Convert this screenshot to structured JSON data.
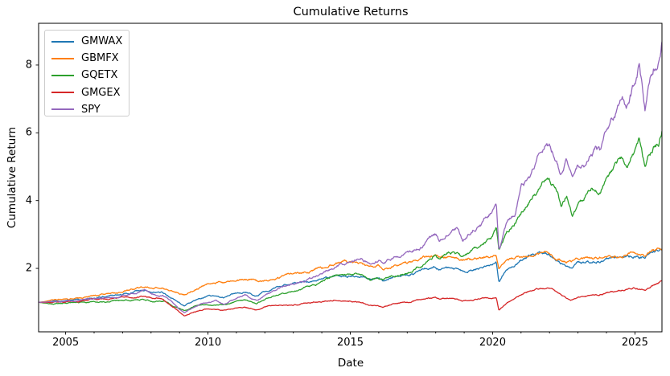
{
  "chart_data": {
    "type": "line",
    "title": "Cumulative Returns",
    "xlabel": "Date",
    "ylabel": "Cumulative Return",
    "grid": false,
    "legend_position": "upper left",
    "x_range": [
      2004.05,
      2025.95
    ],
    "y_range": [
      0.13,
      9.23
    ],
    "x_ticks": [
      2005,
      2010,
      2015,
      2020,
      2025
    ],
    "x_tick_labels": [
      "2005",
      "2010",
      "2015",
      "2020",
      "2025"
    ],
    "y_ticks": [
      2,
      4,
      6,
      8
    ],
    "y_tick_labels": [
      "2",
      "4",
      "6",
      "8"
    ],
    "series": [
      {
        "name": "GMWAX",
        "color": "#1f77b4",
        "points": [
          [
            2004.05,
            1.0
          ],
          [
            2004.5,
            1.02
          ],
          [
            2005,
            1.06
          ],
          [
            2005.5,
            1.09
          ],
          [
            2006,
            1.14
          ],
          [
            2006.5,
            1.18
          ],
          [
            2007,
            1.26
          ],
          [
            2007.5,
            1.34
          ],
          [
            2008,
            1.3
          ],
          [
            2008.4,
            1.28
          ],
          [
            2008.75,
            1.12
          ],
          [
            2009,
            1.0
          ],
          [
            2009.17,
            0.9
          ],
          [
            2009.5,
            1.05
          ],
          [
            2010,
            1.18
          ],
          [
            2010.55,
            1.12
          ],
          [
            2011,
            1.28
          ],
          [
            2011.3,
            1.33
          ],
          [
            2011.7,
            1.22
          ],
          [
            2012,
            1.35
          ],
          [
            2012.5,
            1.48
          ],
          [
            2013,
            1.55
          ],
          [
            2013.5,
            1.62
          ],
          [
            2014,
            1.7
          ],
          [
            2014.5,
            1.8
          ],
          [
            2015,
            1.8
          ],
          [
            2015.4,
            1.79
          ],
          [
            2015.7,
            1.68
          ],
          [
            2016,
            1.72
          ],
          [
            2016.15,
            1.64
          ],
          [
            2016.5,
            1.76
          ],
          [
            2017,
            1.84
          ],
          [
            2017.5,
            1.94
          ],
          [
            2018,
            2.08
          ],
          [
            2018.12,
            1.98
          ],
          [
            2018.5,
            2.02
          ],
          [
            2018.95,
            1.9
          ],
          [
            2019.6,
            2.04
          ],
          [
            2020,
            2.1
          ],
          [
            2020.13,
            2.15
          ],
          [
            2020.22,
            1.62
          ],
          [
            2020.5,
            2.0
          ],
          [
            2021,
            2.25
          ],
          [
            2021.5,
            2.47
          ],
          [
            2021.9,
            2.44
          ],
          [
            2022,
            2.4
          ],
          [
            2022.4,
            2.18
          ],
          [
            2022.75,
            2.0
          ],
          [
            2023,
            2.15
          ],
          [
            2023.5,
            2.2
          ],
          [
            2024,
            2.28
          ],
          [
            2024.5,
            2.33
          ],
          [
            2025,
            2.38
          ],
          [
            2025.35,
            2.3
          ],
          [
            2025.6,
            2.42
          ],
          [
            2025.95,
            2.55
          ]
        ]
      },
      {
        "name": "GBMFX",
        "color": "#ff7f0e",
        "points": [
          [
            2004.05,
            1.0
          ],
          [
            2004.5,
            1.04
          ],
          [
            2005,
            1.08
          ],
          [
            2005.5,
            1.12
          ],
          [
            2006,
            1.17
          ],
          [
            2006.5,
            1.22
          ],
          [
            2007,
            1.3
          ],
          [
            2007.5,
            1.42
          ],
          [
            2008,
            1.42
          ],
          [
            2008.4,
            1.47
          ],
          [
            2008.75,
            1.33
          ],
          [
            2009,
            1.27
          ],
          [
            2009.17,
            1.22
          ],
          [
            2009.5,
            1.38
          ],
          [
            2010,
            1.55
          ],
          [
            2010.4,
            1.6
          ],
          [
            2010.6,
            1.55
          ],
          [
            2011,
            1.63
          ],
          [
            2011.5,
            1.65
          ],
          [
            2011.75,
            1.6
          ],
          [
            2012,
            1.68
          ],
          [
            2012.5,
            1.73
          ],
          [
            2013,
            1.83
          ],
          [
            2013.5,
            1.88
          ],
          [
            2014,
            1.98
          ],
          [
            2014.5,
            2.15
          ],
          [
            2015,
            2.16
          ],
          [
            2015.4,
            2.13
          ],
          [
            2015.7,
            2.03
          ],
          [
            2016,
            2.06
          ],
          [
            2016.15,
            2.0
          ],
          [
            2016.5,
            2.1
          ],
          [
            2017,
            2.15
          ],
          [
            2017.5,
            2.25
          ],
          [
            2018,
            2.37
          ],
          [
            2018.12,
            2.3
          ],
          [
            2018.5,
            2.35
          ],
          [
            2018.95,
            2.22
          ],
          [
            2019.6,
            2.3
          ],
          [
            2020,
            2.32
          ],
          [
            2020.13,
            2.36
          ],
          [
            2020.22,
            1.95
          ],
          [
            2020.5,
            2.2
          ],
          [
            2021,
            2.32
          ],
          [
            2021.5,
            2.42
          ],
          [
            2021.9,
            2.46
          ],
          [
            2022,
            2.42
          ],
          [
            2022.4,
            2.28
          ],
          [
            2022.75,
            2.18
          ],
          [
            2023,
            2.26
          ],
          [
            2023.5,
            2.3
          ],
          [
            2024,
            2.36
          ],
          [
            2024.5,
            2.42
          ],
          [
            2025,
            2.46
          ],
          [
            2025.35,
            2.4
          ],
          [
            2025.6,
            2.5
          ],
          [
            2025.95,
            2.65
          ]
        ]
      },
      {
        "name": "GQETX",
        "color": "#2ca02c",
        "points": [
          [
            2004.05,
            1.0
          ],
          [
            2004.4,
            0.97
          ],
          [
            2005,
            1.0
          ],
          [
            2005.5,
            1.0
          ],
          [
            2006,
            1.03
          ],
          [
            2006.5,
            1.02
          ],
          [
            2007,
            1.07
          ],
          [
            2007.5,
            1.1
          ],
          [
            2008,
            1.05
          ],
          [
            2008.5,
            1.06
          ],
          [
            2008.75,
            0.92
          ],
          [
            2009,
            0.85
          ],
          [
            2009.17,
            0.78
          ],
          [
            2009.5,
            0.88
          ],
          [
            2010,
            0.95
          ],
          [
            2010.55,
            0.91
          ],
          [
            2011,
            1.02
          ],
          [
            2011.3,
            1.06
          ],
          [
            2011.7,
            0.96
          ],
          [
            2012,
            1.08
          ],
          [
            2012.5,
            1.22
          ],
          [
            2013,
            1.32
          ],
          [
            2013.5,
            1.45
          ],
          [
            2014,
            1.58
          ],
          [
            2014.5,
            1.78
          ],
          [
            2015,
            1.8
          ],
          [
            2015.4,
            1.83
          ],
          [
            2015.7,
            1.7
          ],
          [
            2016,
            1.74
          ],
          [
            2016.15,
            1.66
          ],
          [
            2016.5,
            1.8
          ],
          [
            2017,
            1.92
          ],
          [
            2017.5,
            2.15
          ],
          [
            2018,
            2.45
          ],
          [
            2018.12,
            2.32
          ],
          [
            2018.5,
            2.5
          ],
          [
            2018.95,
            2.35
          ],
          [
            2019.6,
            2.68
          ],
          [
            2020,
            2.95
          ],
          [
            2020.13,
            3.15
          ],
          [
            2020.22,
            2.55
          ],
          [
            2020.5,
            3.1
          ],
          [
            2021,
            3.7
          ],
          [
            2021.5,
            4.2
          ],
          [
            2021.9,
            4.7
          ],
          [
            2022,
            4.6
          ],
          [
            2022.2,
            4.3
          ],
          [
            2022.4,
            3.8
          ],
          [
            2022.6,
            4.15
          ],
          [
            2022.8,
            3.6
          ],
          [
            2023,
            3.9
          ],
          [
            2023.5,
            4.35
          ],
          [
            2023.8,
            4.25
          ],
          [
            2024,
            4.7
          ],
          [
            2024.3,
            5.0
          ],
          [
            2024.55,
            5.3
          ],
          [
            2024.7,
            5.1
          ],
          [
            2025,
            5.45
          ],
          [
            2025.15,
            5.75
          ],
          [
            2025.35,
            5.0
          ],
          [
            2025.5,
            5.45
          ],
          [
            2025.7,
            5.7
          ],
          [
            2025.85,
            5.85
          ],
          [
            2025.95,
            6.15
          ]
        ]
      },
      {
        "name": "GMGEX",
        "color": "#d62728",
        "points": [
          [
            2004.05,
            1.0
          ],
          [
            2004.5,
            0.99
          ],
          [
            2005,
            1.02
          ],
          [
            2005.5,
            1.05
          ],
          [
            2006,
            1.1
          ],
          [
            2006.5,
            1.11
          ],
          [
            2007,
            1.17
          ],
          [
            2007.5,
            1.2
          ],
          [
            2008,
            1.14
          ],
          [
            2008.4,
            1.12
          ],
          [
            2008.75,
            0.88
          ],
          [
            2009,
            0.7
          ],
          [
            2009.17,
            0.58
          ],
          [
            2009.5,
            0.72
          ],
          [
            2010,
            0.8
          ],
          [
            2010.55,
            0.76
          ],
          [
            2011,
            0.84
          ],
          [
            2011.3,
            0.86
          ],
          [
            2011.7,
            0.78
          ],
          [
            2012,
            0.86
          ],
          [
            2012.5,
            0.92
          ],
          [
            2013,
            0.95
          ],
          [
            2013.5,
            0.98
          ],
          [
            2014,
            1.02
          ],
          [
            2014.5,
            1.08
          ],
          [
            2015,
            1.05
          ],
          [
            2015.4,
            1.0
          ],
          [
            2015.7,
            0.92
          ],
          [
            2016,
            0.9
          ],
          [
            2016.15,
            0.87
          ],
          [
            2016.5,
            0.95
          ],
          [
            2017,
            1.0
          ],
          [
            2017.5,
            1.07
          ],
          [
            2018,
            1.14
          ],
          [
            2018.12,
            1.08
          ],
          [
            2018.5,
            1.1
          ],
          [
            2018.95,
            1.02
          ],
          [
            2019.6,
            1.1
          ],
          [
            2020,
            1.1
          ],
          [
            2020.13,
            1.13
          ],
          [
            2020.22,
            0.76
          ],
          [
            2020.5,
            1.0
          ],
          [
            2021,
            1.22
          ],
          [
            2021.5,
            1.42
          ],
          [
            2021.9,
            1.45
          ],
          [
            2022,
            1.42
          ],
          [
            2022.4,
            1.25
          ],
          [
            2022.75,
            1.04
          ],
          [
            2023,
            1.15
          ],
          [
            2023.5,
            1.2
          ],
          [
            2024,
            1.3
          ],
          [
            2024.5,
            1.36
          ],
          [
            2025,
            1.4
          ],
          [
            2025.35,
            1.34
          ],
          [
            2025.6,
            1.45
          ],
          [
            2025.95,
            1.62
          ]
        ]
      },
      {
        "name": "SPY",
        "color": "#9467bd",
        "points": [
          [
            2004.05,
            1.0
          ],
          [
            2004.5,
            1.02
          ],
          [
            2005,
            1.05
          ],
          [
            2005.5,
            1.07
          ],
          [
            2006,
            1.12
          ],
          [
            2006.5,
            1.14
          ],
          [
            2007,
            1.22
          ],
          [
            2007.5,
            1.3
          ],
          [
            2007.8,
            1.32
          ],
          [
            2008,
            1.26
          ],
          [
            2008.5,
            1.18
          ],
          [
            2008.7,
            1.08
          ],
          [
            2009,
            0.8
          ],
          [
            2009.17,
            0.68
          ],
          [
            2009.5,
            0.88
          ],
          [
            2009.8,
            0.97
          ],
          [
            2010,
            1.0
          ],
          [
            2010.3,
            1.04
          ],
          [
            2010.55,
            0.96
          ],
          [
            2011,
            1.13
          ],
          [
            2011.3,
            1.2
          ],
          [
            2011.7,
            1.05
          ],
          [
            2012,
            1.22
          ],
          [
            2012.5,
            1.4
          ],
          [
            2013,
            1.55
          ],
          [
            2013.5,
            1.7
          ],
          [
            2014,
            1.85
          ],
          [
            2014.5,
            2.05
          ],
          [
            2015,
            2.22
          ],
          [
            2015.4,
            2.33
          ],
          [
            2015.7,
            2.18
          ],
          [
            2016,
            2.28
          ],
          [
            2016.15,
            2.15
          ],
          [
            2016.5,
            2.3
          ],
          [
            2017,
            2.48
          ],
          [
            2017.5,
            2.65
          ],
          [
            2018,
            2.95
          ],
          [
            2018.12,
            2.78
          ],
          [
            2018.5,
            3.05
          ],
          [
            2018.75,
            3.15
          ],
          [
            2018.95,
            2.75
          ],
          [
            2019.3,
            3.15
          ],
          [
            2019.6,
            3.3
          ],
          [
            2020,
            3.75
          ],
          [
            2020.13,
            4.05
          ],
          [
            2020.22,
            2.65
          ],
          [
            2020.5,
            3.35
          ],
          [
            2020.8,
            3.55
          ],
          [
            2021,
            4.4
          ],
          [
            2021.3,
            4.55
          ],
          [
            2021.5,
            5.05
          ],
          [
            2021.9,
            5.85
          ],
          [
            2022,
            5.7
          ],
          [
            2022.2,
            5.3
          ],
          [
            2022.4,
            4.75
          ],
          [
            2022.6,
            5.15
          ],
          [
            2022.8,
            4.55
          ],
          [
            2023,
            4.9
          ],
          [
            2023.3,
            5.1
          ],
          [
            2023.6,
            5.45
          ],
          [
            2023.8,
            5.3
          ],
          [
            2024,
            5.9
          ],
          [
            2024.3,
            6.4
          ],
          [
            2024.55,
            6.9
          ],
          [
            2024.7,
            6.65
          ],
          [
            2025,
            7.4
          ],
          [
            2025.15,
            7.9
          ],
          [
            2025.35,
            6.6
          ],
          [
            2025.5,
            7.4
          ],
          [
            2025.7,
            8.0
          ],
          [
            2025.85,
            8.4
          ],
          [
            2025.95,
            8.85
          ]
        ]
      }
    ]
  }
}
